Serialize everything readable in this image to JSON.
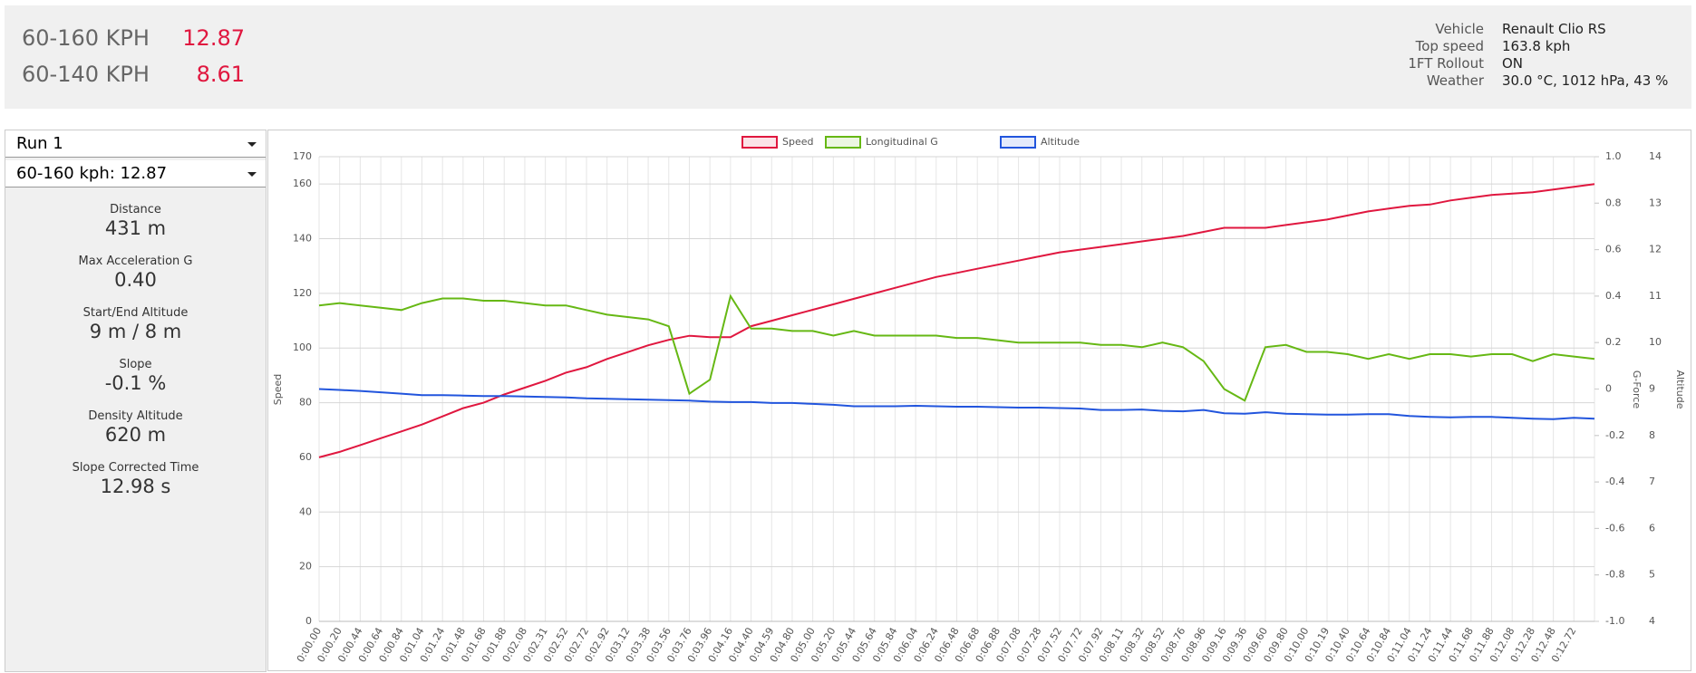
{
  "header": {
    "results": [
      {
        "label": "60-160 KPH",
        "value": "12.87"
      },
      {
        "label": "60-140 KPH",
        "value": "8.61"
      }
    ],
    "info": [
      {
        "key": "Vehicle",
        "value": "Renault Clio RS"
      },
      {
        "key": "Top speed",
        "value": "163.8 kph"
      },
      {
        "key": "1FT Rollout",
        "value": "ON"
      },
      {
        "key": "Weather",
        "value": "30.0 °C, 1012 hPa, 43 %"
      }
    ]
  },
  "sidebar": {
    "run_select": "Run 1",
    "result_select": "60-160 kph: 12.87",
    "stats": [
      {
        "label": "Distance",
        "value": "431 m"
      },
      {
        "label": "Max Acceleration G",
        "value": "0.40"
      },
      {
        "label": "Start/End Altitude",
        "value": "9 m / 8 m"
      },
      {
        "label": "Slope",
        "value": "-0.1 %"
      },
      {
        "label": "Density Altitude",
        "value": "620 m"
      },
      {
        "label": "Slope Corrected Time",
        "value": "12.98 s"
      }
    ]
  },
  "chart_data": {
    "type": "line",
    "ylabel": "Speed",
    "y2label": "G-Force",
    "y3label": "Altitude",
    "grid": true,
    "legend": "top",
    "categories": [
      "0:00.00",
      "0:00.20",
      "0:00.44",
      "0:00.64",
      "0:00.84",
      "0:01.04",
      "0:01.24",
      "0:01.48",
      "0:01.68",
      "0:01.88",
      "0:02.08",
      "0:02.31",
      "0:02.52",
      "0:02.72",
      "0:02.92",
      "0:03.12",
      "0:03.38",
      "0:03.56",
      "0:03.76",
      "0:03.96",
      "0:04.16",
      "0:04.40",
      "0:04.59",
      "0:04.80",
      "0:05.00",
      "0:05.20",
      "0:05.44",
      "0:05.64",
      "0:05.84",
      "0:06.04",
      "0:06.24",
      "0:06.48",
      "0:06.68",
      "0:06.88",
      "0:07.08",
      "0:07.28",
      "0:07.52",
      "0:07.72",
      "0:07.92",
      "0:08.11",
      "0:08.32",
      "0:08.52",
      "0:08.76",
      "0:08.96",
      "0:09.16",
      "0:09.36",
      "0:09.60",
      "0:09.80",
      "0:10.00",
      "0:10.19",
      "0:10.40",
      "0:10.64",
      "0:10.84",
      "0:11.04",
      "0:11.24",
      "0:11.44",
      "0:11.68",
      "0:11.88",
      "0:12.08",
      "0:12.28",
      "0:12.48",
      "0:12.72",
      null
    ],
    "ylim": [
      0,
      170
    ],
    "yticks": [
      0,
      20,
      40,
      60,
      80,
      100,
      120,
      140,
      160,
      170
    ],
    "y2lim": [
      -1,
      1
    ],
    "y2ticks": [
      {
        "value": 1,
        "label": "1.0"
      },
      0.8,
      0.6,
      0.4,
      0.2,
      0,
      -0.2,
      -0.4,
      -0.6,
      -0.8,
      {
        "value": -1,
        "label": "-1.0"
      }
    ],
    "y3lim": [
      4,
      14
    ],
    "y3ticks": [
      4,
      5,
      6,
      7,
      8,
      9,
      10,
      11,
      12,
      13,
      14
    ],
    "series": [
      {
        "name": "Speed",
        "color": "#e0173f",
        "axis": "y",
        "values": [
          60,
          62,
          64.5,
          67,
          69.5,
          72,
          75,
          78,
          80,
          83,
          85.5,
          88,
          91,
          93,
          96,
          98.5,
          101,
          103,
          104.5,
          104,
          104,
          108,
          110,
          112,
          114,
          116,
          118,
          120,
          122,
          124,
          126,
          127.5,
          129,
          130.5,
          132,
          133.5,
          135,
          136,
          137,
          138,
          139,
          140,
          141,
          142.5,
          144,
          144,
          144,
          145,
          146,
          147,
          148.5,
          150,
          151,
          152,
          152.5,
          154,
          155,
          156,
          156.5,
          157,
          158,
          159,
          160
        ]
      },
      {
        "name": "Longitudinal G",
        "color": "#66b814",
        "axis": "y2",
        "values": [
          0.36,
          0.37,
          0.36,
          0.35,
          0.34,
          0.37,
          0.39,
          0.39,
          0.38,
          0.38,
          0.37,
          0.36,
          0.36,
          0.34,
          0.32,
          0.31,
          0.3,
          0.27,
          -0.02,
          0.04,
          0.4,
          0.26,
          0.26,
          0.25,
          0.25,
          0.23,
          0.25,
          0.23,
          0.23,
          0.23,
          0.23,
          0.22,
          0.22,
          0.21,
          0.2,
          0.2,
          0.2,
          0.2,
          0.19,
          0.19,
          0.18,
          0.2,
          0.18,
          0.12,
          0,
          -0.05,
          0.18,
          0.19,
          0.16,
          0.16,
          0.15,
          0.13,
          0.15,
          0.13,
          0.15,
          0.15,
          0.14,
          0.15,
          0.15,
          0.12,
          0.15,
          0.14,
          0.13
        ]
      },
      {
        "name": "Altitude",
        "color": "#2255dd",
        "axis": "y3",
        "values": [
          9,
          8.98,
          8.96,
          8.93,
          8.9,
          8.87,
          8.87,
          8.86,
          8.85,
          8.85,
          8.84,
          8.83,
          8.82,
          8.8,
          8.79,
          8.78,
          8.77,
          8.76,
          8.75,
          8.73,
          8.72,
          8.72,
          8.7,
          8.7,
          8.68,
          8.66,
          8.63,
          8.63,
          8.63,
          8.64,
          8.63,
          8.62,
          8.62,
          8.61,
          8.6,
          8.6,
          8.59,
          8.58,
          8.55,
          8.55,
          8.56,
          8.53,
          8.52,
          8.55,
          8.48,
          8.47,
          8.5,
          8.47,
          8.46,
          8.45,
          8.45,
          8.46,
          8.46,
          8.42,
          8.4,
          8.39,
          8.4,
          8.4,
          8.38,
          8.36,
          8.35,
          8.38,
          8.36
        ]
      }
    ]
  }
}
